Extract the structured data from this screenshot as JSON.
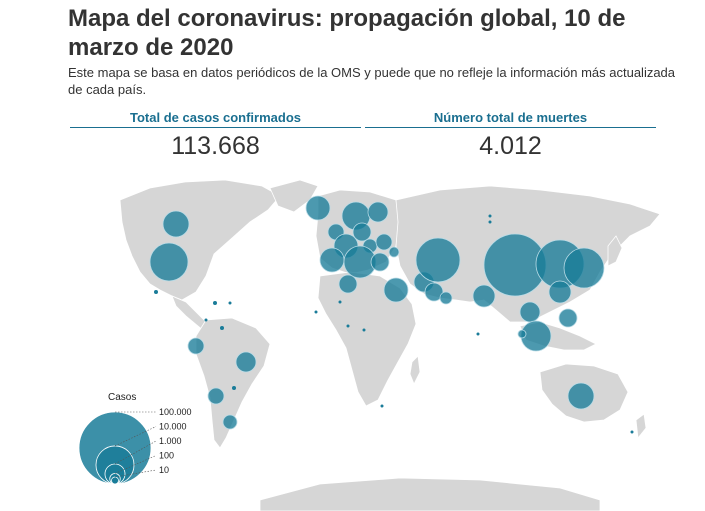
{
  "header": {
    "title": "Mapa del coronavirus: propagación global, 10 de marzo de 2020",
    "subtitle": "Este mapa se basa en datos periódicos de la OMS y puede que no refleje la información más actualizada de cada país."
  },
  "stats": {
    "confirmed_label": "Total de casos confirmados",
    "confirmed_value": "113.668",
    "deaths_label": "Número total de muertes",
    "deaths_value": "4.012"
  },
  "colors": {
    "accent": "#1a6f90",
    "bubble": "#1a7c99",
    "land": "#d6d6d6"
  },
  "legend": {
    "title": "Casos",
    "entries": [
      {
        "label": "100.000",
        "value": 100000
      },
      {
        "label": "10.000",
        "value": 10000
      },
      {
        "label": "1.000",
        "value": 1000
      },
      {
        "label": "100",
        "value": 100
      },
      {
        "label": "10",
        "value": 10
      }
    ]
  }
}
